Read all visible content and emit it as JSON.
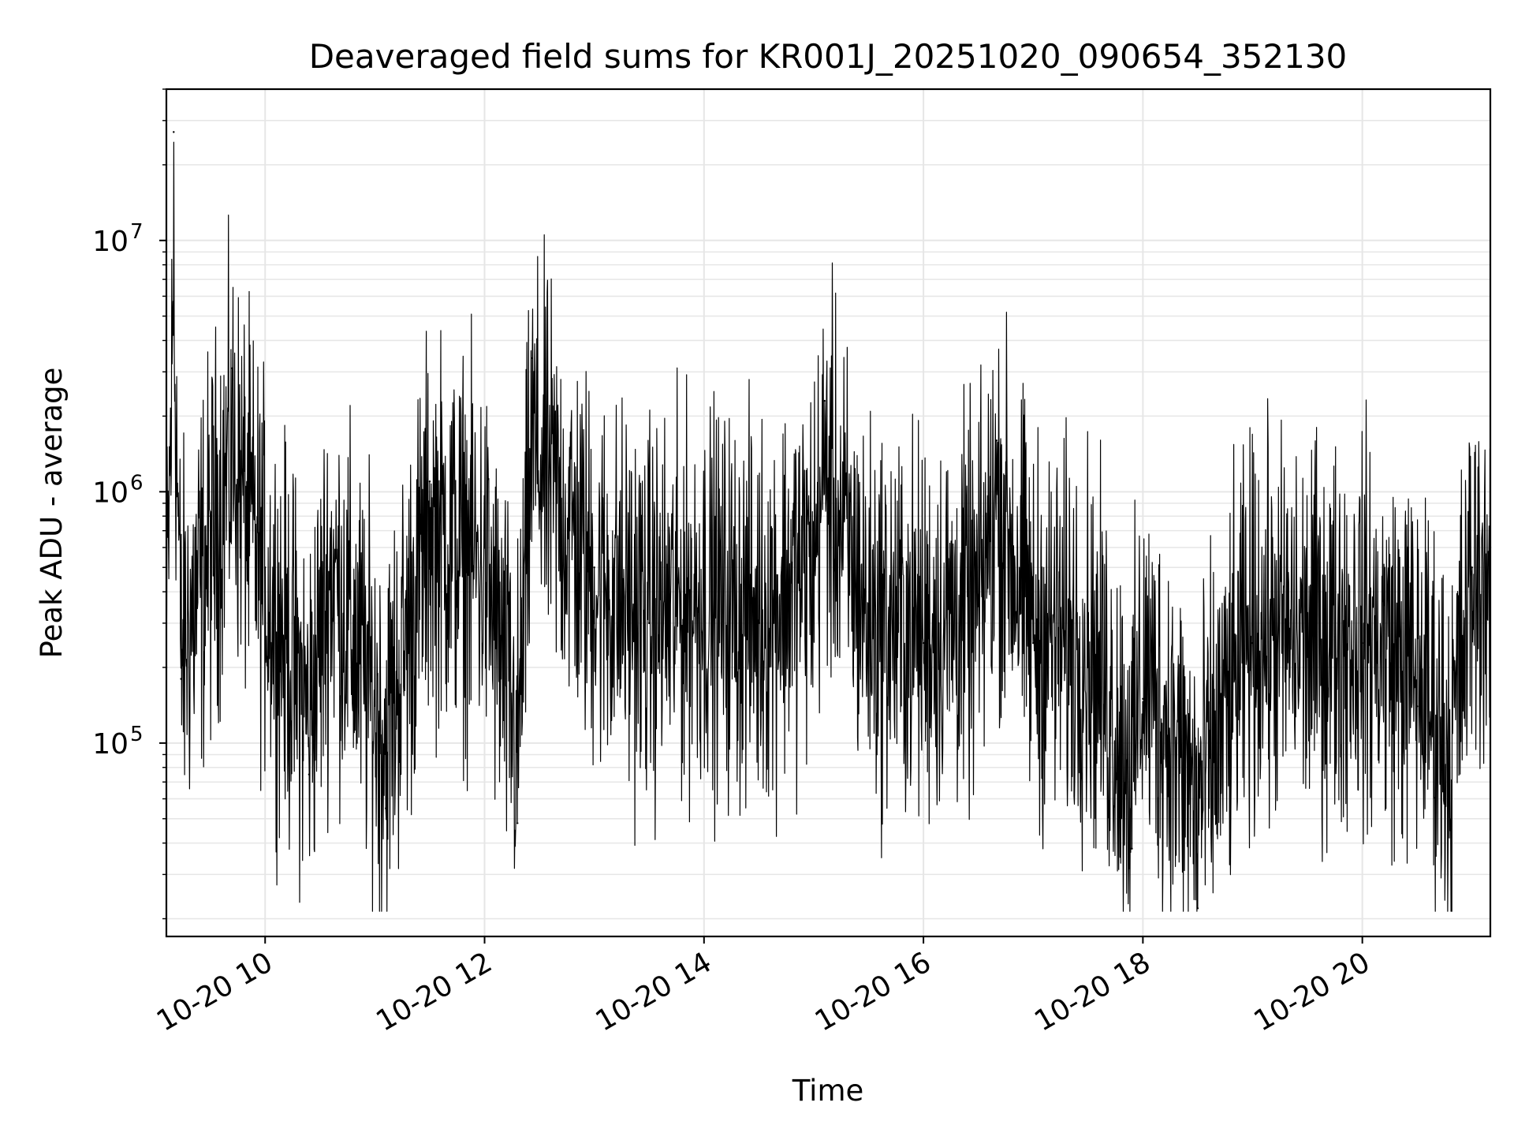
{
  "chart_data": {
    "type": "line",
    "title": "Deaveraged field sums for KR001J_20251020_090654_352130",
    "xlabel": "Time",
    "ylabel": "Peak ADU - average",
    "y_scale": "log",
    "ylim": [
      17000,
      40000000
    ],
    "xlim": [
      "2025-10-20 09:06",
      "2025-10-20 21:10"
    ],
    "grid": true,
    "line_color": "#000000",
    "grid_color": "#e6e6e6",
    "x_ticks": [
      {
        "value": "2025-10-20 10:00",
        "label": "10-20 10"
      },
      {
        "value": "2025-10-20 12:00",
        "label": "10-20 12"
      },
      {
        "value": "2025-10-20 14:00",
        "label": "10-20 14"
      },
      {
        "value": "2025-10-20 16:00",
        "label": "10-20 16"
      },
      {
        "value": "2025-10-20 18:00",
        "label": "10-20 18"
      },
      {
        "value": "2025-10-20 20:00",
        "label": "10-20 20"
      }
    ],
    "y_ticks": [
      {
        "value": 100000,
        "base": "10",
        "exponent": "5"
      },
      {
        "value": 1000000,
        "base": "10",
        "exponent": "6"
      },
      {
        "value": 10000000,
        "base": "10",
        "exponent": "7"
      }
    ],
    "series": [
      {
        "points": [
          {
            "x": "2025-10-20 09:06",
            "y": 200000
          },
          {
            "x": "2025-10-20 09:10",
            "y": 27000000
          },
          {
            "x": "2025-10-20 09:14",
            "y": 180000
          },
          {
            "x": "2025-10-20 09:30",
            "y": 800000
          },
          {
            "x": "2025-10-20 09:42",
            "y": 3100000
          },
          {
            "x": "2025-10-20 10:00",
            "y": 500000
          },
          {
            "x": "2025-10-20 10:24",
            "y": 75000
          },
          {
            "x": "2025-10-20 10:36",
            "y": 600000
          },
          {
            "x": "2025-10-20 11:06",
            "y": 55000
          },
          {
            "x": "2025-10-20 11:30",
            "y": 1100000
          },
          {
            "x": "2025-10-20 12:00",
            "y": 600000
          },
          {
            "x": "2025-10-20 12:18",
            "y": 48000
          },
          {
            "x": "2025-10-20 12:26",
            "y": 3400000
          },
          {
            "x": "2025-10-20 13:00",
            "y": 500000
          },
          {
            "x": "2025-10-20 13:30",
            "y": 300000
          },
          {
            "x": "2025-10-20 14:00",
            "y": 400000
          },
          {
            "x": "2025-10-20 14:30",
            "y": 300000
          },
          {
            "x": "2025-10-20 15:00",
            "y": 700000
          },
          {
            "x": "2025-10-20 15:06",
            "y": 2300000
          },
          {
            "x": "2025-10-20 15:30",
            "y": 300000
          },
          {
            "x": "2025-10-20 16:00",
            "y": 250000
          },
          {
            "x": "2025-10-20 16:30",
            "y": 350000
          },
          {
            "x": "2025-10-20 16:40",
            "y": 1600000
          },
          {
            "x": "2025-10-20 17:00",
            "y": 250000
          },
          {
            "x": "2025-10-20 17:30",
            "y": 200000
          },
          {
            "x": "2025-10-20 17:54",
            "y": 38000
          },
          {
            "x": "2025-10-20 18:00",
            "y": 150000
          },
          {
            "x": "2025-10-20 18:30",
            "y": 22000
          },
          {
            "x": "2025-10-20 19:00",
            "y": 250000
          },
          {
            "x": "2025-10-20 19:30",
            "y": 220000
          },
          {
            "x": "2025-10-20 20:00",
            "y": 250000
          },
          {
            "x": "2025-10-20 20:30",
            "y": 140000
          },
          {
            "x": "2025-10-20 20:48",
            "y": 45000
          },
          {
            "x": "2025-10-20 21:00",
            "y": 500000
          },
          {
            "x": "2025-10-20 21:10",
            "y": 600000
          }
        ]
      }
    ]
  }
}
